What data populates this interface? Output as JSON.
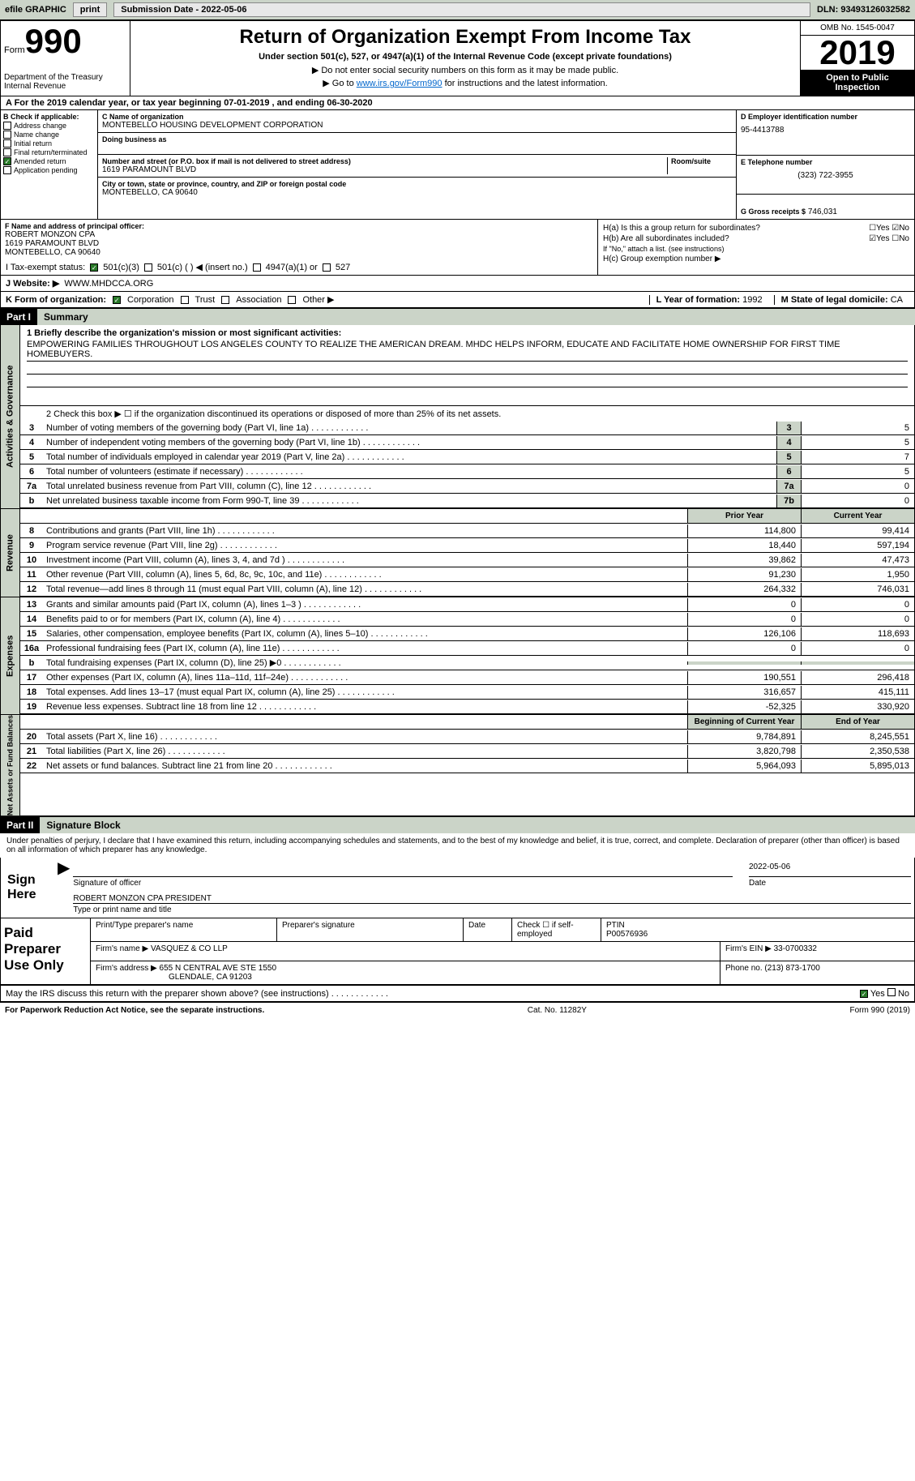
{
  "topbar": {
    "efile_label": "efile GRAPHIC",
    "print_btn": "print",
    "submission_label": "Submission Date - 2022-05-06",
    "dln": "DLN: 93493126032582"
  },
  "header": {
    "form_word": "Form",
    "form_num": "990",
    "dept": "Department of the Treasury",
    "irs": "Internal Revenue",
    "title": "Return of Organization Exempt From Income Tax",
    "subtitle": "Under section 501(c), 527, or 4947(a)(1) of the Internal Revenue Code (except private foundations)",
    "note1": "▶ Do not enter social security numbers on this form as it may be made public.",
    "note2_pre": "▶ Go to ",
    "note2_link": "www.irs.gov/Form990",
    "note2_post": " for instructions and the latest information.",
    "omb": "OMB No. 1545-0047",
    "year": "2019",
    "inspect1": "Open to Public",
    "inspect2": "Inspection"
  },
  "period": "A For the 2019 calendar year, or tax year beginning 07-01-2019    , and ending 06-30-2020",
  "section_b": {
    "label": "B Check if applicable:",
    "addr": "Address change",
    "name": "Name change",
    "initial": "Initial return",
    "final": "Final return/terminated",
    "amended": "Amended return",
    "app": "Application pending"
  },
  "section_c": {
    "name_label": "C Name of organization",
    "org_name": "MONTEBELLO HOUSING DEVELOPMENT CORPORATION",
    "dba_label": "Doing business as",
    "addr_label": "Number and street (or P.O. box if mail is not delivered to street address)",
    "room_label": "Room/suite",
    "addr": "1619 PARAMOUNT BLVD",
    "city_label": "City or town, state or province, country, and ZIP or foreign postal code",
    "city": "MONTEBELLO, CA  90640"
  },
  "section_d": {
    "label": "D Employer identification number",
    "ein": "95-4413788",
    "tel_label": "E Telephone number",
    "tel": "(323) 722-3955",
    "gross_label": "G Gross receipts $",
    "gross": "746,031"
  },
  "section_f": {
    "label": "F  Name and address of principal officer:",
    "name": "ROBERT MONZON CPA",
    "addr1": "1619 PARAMOUNT BLVD",
    "addr2": "MONTEBELLO, CA  90640"
  },
  "section_h": {
    "ha": "H(a)  Is this a group return for subordinates?",
    "hb": "H(b)  Are all subordinates included?",
    "hb_note": "If \"No,\" attach a list. (see instructions)",
    "hc": "H(c)  Group exemption number ▶",
    "yes": "Yes",
    "no": "No"
  },
  "row_i": {
    "label": "I    Tax-exempt status:",
    "opt1": "501(c)(3)",
    "opt2": "501(c) (  ) ◀ (insert no.)",
    "opt3": "4947(a)(1) or",
    "opt4": "527"
  },
  "row_j": {
    "label": "J   Website: ▶",
    "value": "WWW.MHDCCA.ORG"
  },
  "row_k": {
    "label": "K Form of organization:",
    "corp": "Corporation",
    "trust": "Trust",
    "assoc": "Association",
    "other": "Other ▶"
  },
  "row_lm": {
    "l_label": "L Year of formation:",
    "l_val": "1992",
    "m_label": "M State of legal domicile:",
    "m_val": "CA"
  },
  "part1": {
    "label": "Part I",
    "title": "Summary"
  },
  "summary": {
    "line1_label": "1  Briefly describe the organization's mission or most significant activities:",
    "mission": "EMPOWERING FAMILIES THROUGHOUT LOS ANGELES COUNTY TO REALIZE THE AMERICAN DREAM. MHDC HELPS INFORM, EDUCATE AND FACILITATE HOME OWNERSHIP FOR FIRST TIME HOMEBUYERS.",
    "line2": "2   Check this box ▶ ☐  if the organization discontinued its operations or disposed of more than 25% of its net assets.",
    "gov_rows": [
      {
        "n": "3",
        "d": "Number of voting members of the governing body (Part VI, line 1a)",
        "b": "3",
        "v": "5"
      },
      {
        "n": "4",
        "d": "Number of independent voting members of the governing body (Part VI, line 1b)",
        "b": "4",
        "v": "5"
      },
      {
        "n": "5",
        "d": "Total number of individuals employed in calendar year 2019 (Part V, line 2a)",
        "b": "5",
        "v": "7"
      },
      {
        "n": "6",
        "d": "Total number of volunteers (estimate if necessary)",
        "b": "6",
        "v": "5"
      },
      {
        "n": "7a",
        "d": "Total unrelated business revenue from Part VIII, column (C), line 12",
        "b": "7a",
        "v": "0"
      },
      {
        "n": "b",
        "d": "Net unrelated business taxable income from Form 990-T, line 39",
        "b": "7b",
        "v": "0"
      }
    ],
    "prior_label": "Prior Year",
    "current_label": "Current Year",
    "rev_rows": [
      {
        "n": "8",
        "d": "Contributions and grants (Part VIII, line 1h)",
        "p": "114,800",
        "c": "99,414"
      },
      {
        "n": "9",
        "d": "Program service revenue (Part VIII, line 2g)",
        "p": "18,440",
        "c": "597,194"
      },
      {
        "n": "10",
        "d": "Investment income (Part VIII, column (A), lines 3, 4, and 7d )",
        "p": "39,862",
        "c": "47,473"
      },
      {
        "n": "11",
        "d": "Other revenue (Part VIII, column (A), lines 5, 6d, 8c, 9c, 10c, and 11e)",
        "p": "91,230",
        "c": "1,950"
      },
      {
        "n": "12",
        "d": "Total revenue—add lines 8 through 11 (must equal Part VIII, column (A), line 12)",
        "p": "264,332",
        "c": "746,031"
      }
    ],
    "exp_rows": [
      {
        "n": "13",
        "d": "Grants and similar amounts paid (Part IX, column (A), lines 1–3 )",
        "p": "0",
        "c": "0"
      },
      {
        "n": "14",
        "d": "Benefits paid to or for members (Part IX, column (A), line 4)",
        "p": "0",
        "c": "0"
      },
      {
        "n": "15",
        "d": "Salaries, other compensation, employee benefits (Part IX, column (A), lines 5–10)",
        "p": "126,106",
        "c": "118,693"
      },
      {
        "n": "16a",
        "d": "Professional fundraising fees (Part IX, column (A), line 11e)",
        "p": "0",
        "c": "0"
      },
      {
        "n": "b",
        "d": "Total fundraising expenses (Part IX, column (D), line 25) ▶0",
        "p": "",
        "c": "",
        "shaded": true
      },
      {
        "n": "17",
        "d": "Other expenses (Part IX, column (A), lines 11a–11d, 11f–24e)",
        "p": "190,551",
        "c": "296,418"
      },
      {
        "n": "18",
        "d": "Total expenses. Add lines 13–17 (must equal Part IX, column (A), line 25)",
        "p": "316,657",
        "c": "415,111"
      },
      {
        "n": "19",
        "d": "Revenue less expenses. Subtract line 18 from line 12",
        "p": "-52,325",
        "c": "330,920"
      }
    ],
    "begin_label": "Beginning of Current Year",
    "end_label": "End of Year",
    "net_rows": [
      {
        "n": "20",
        "d": "Total assets (Part X, line 16)",
        "p": "9,784,891",
        "c": "8,245,551"
      },
      {
        "n": "21",
        "d": "Total liabilities (Part X, line 26)",
        "p": "3,820,798",
        "c": "2,350,538"
      },
      {
        "n": "22",
        "d": "Net assets or fund balances. Subtract line 21 from line 20",
        "p": "5,964,093",
        "c": "5,895,013"
      }
    ]
  },
  "side_labels": {
    "gov": "Activities & Governance",
    "rev": "Revenue",
    "exp": "Expenses",
    "net": "Net Assets or Fund Balances"
  },
  "part2": {
    "label": "Part II",
    "title": "Signature Block"
  },
  "penalties": "Under penalties of perjury, I declare that I have examined this return, including accompanying schedules and statements, and to the best of my knowledge and belief, it is true, correct, and complete. Declaration of preparer (other than officer) is based on all information of which preparer has any knowledge.",
  "sign": {
    "label": "Sign Here",
    "sig_label": "Signature of officer",
    "date_label": "Date",
    "date": "2022-05-06",
    "name": "ROBERT MONZON CPA  PRESIDENT",
    "name_label": "Type or print name and title"
  },
  "prep": {
    "label": "Paid Preparer Use Only",
    "pt_label": "Print/Type preparer's name",
    "ps_label": "Preparer's signature",
    "date_label": "Date",
    "check_label": "Check ☐ if self-employed",
    "ptin_label": "PTIN",
    "ptin": "P00576936",
    "firm_label": "Firm's name    ▶",
    "firm": "VASQUEZ & CO LLP",
    "ein_label": "Firm's EIN ▶",
    "ein": "33-0700332",
    "addr_label": "Firm's address ▶",
    "addr1": "655 N CENTRAL AVE STE 1550",
    "addr2": "GLENDALE, CA  91203",
    "phone_label": "Phone no.",
    "phone": "(213) 873-1700"
  },
  "discuss": "May the IRS discuss this return with the preparer shown above? (see instructions)",
  "footer": {
    "left": "For Paperwork Reduction Act Notice, see the separate instructions.",
    "mid": "Cat. No. 11282Y",
    "right": "Form 990 (2019)"
  }
}
